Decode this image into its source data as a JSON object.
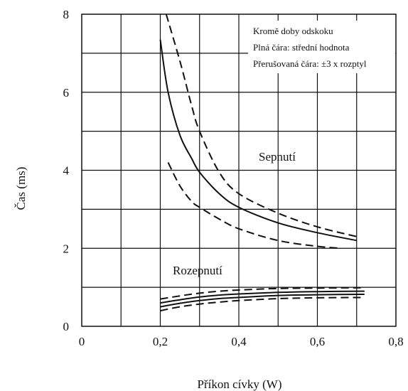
{
  "chart_data": {
    "type": "line",
    "xlabel": "Příkon cívky (W)",
    "ylabel": "Čas (ms)",
    "xlim": [
      0,
      0.8
    ],
    "ylim": [
      0,
      8
    ],
    "x_ticks": [
      "0",
      "0,2",
      "0,4",
      "0,6",
      "0,8"
    ],
    "y_ticks": [
      "0",
      "2",
      "4",
      "6",
      "8"
    ],
    "grid": true,
    "legend_lines": [
      "Kromě doby odskoku",
      "Plná čára: střední hodnota",
      "Přerušovaná čára: ±3 x rozptyl"
    ],
    "curve_labels": {
      "upper": "Sepnutí",
      "lower": "Rozepnutí"
    },
    "series": [
      {
        "group": "upper",
        "style": "solid",
        "x": [
          0.2,
          0.22,
          0.25,
          0.28,
          0.3,
          0.35,
          0.4,
          0.5,
          0.6,
          0.7
        ],
        "y": [
          7.35,
          6.0,
          4.9,
          4.3,
          3.95,
          3.4,
          3.05,
          2.65,
          2.4,
          2.2
        ]
      },
      {
        "group": "upper",
        "style": "dashed",
        "x": [
          0.215,
          0.25,
          0.28,
          0.3,
          0.35,
          0.4,
          0.5,
          0.6,
          0.7
        ],
        "y": [
          8.0,
          6.8,
          5.65,
          5.0,
          3.95,
          3.4,
          2.9,
          2.55,
          2.3
        ]
      },
      {
        "group": "upper",
        "style": "dashed",
        "x": [
          0.22,
          0.25,
          0.28,
          0.3,
          0.35,
          0.4,
          0.5,
          0.6,
          0.66
        ],
        "y": [
          4.2,
          3.6,
          3.2,
          3.05,
          2.75,
          2.5,
          2.2,
          2.05,
          2.0
        ]
      },
      {
        "group": "lower",
        "style": "dashed",
        "x": [
          0.2,
          0.25,
          0.3,
          0.35,
          0.4,
          0.5,
          0.6,
          0.72
        ],
        "y": [
          0.7,
          0.78,
          0.85,
          0.9,
          0.93,
          0.97,
          0.98,
          0.99
        ]
      },
      {
        "group": "lower",
        "style": "solid",
        "x": [
          0.2,
          0.25,
          0.3,
          0.35,
          0.4,
          0.5,
          0.6,
          0.72
        ],
        "y": [
          0.6,
          0.68,
          0.75,
          0.8,
          0.83,
          0.87,
          0.89,
          0.9
        ]
      },
      {
        "group": "lower",
        "style": "solid",
        "x": [
          0.2,
          0.25,
          0.3,
          0.35,
          0.4,
          0.5,
          0.6,
          0.72
        ],
        "y": [
          0.5,
          0.59,
          0.66,
          0.71,
          0.74,
          0.79,
          0.81,
          0.82
        ]
      },
      {
        "group": "lower",
        "style": "dashed",
        "x": [
          0.2,
          0.25,
          0.3,
          0.35,
          0.4,
          0.5,
          0.6,
          0.72
        ],
        "y": [
          0.4,
          0.5,
          0.57,
          0.62,
          0.66,
          0.71,
          0.73,
          0.74
        ]
      }
    ]
  }
}
